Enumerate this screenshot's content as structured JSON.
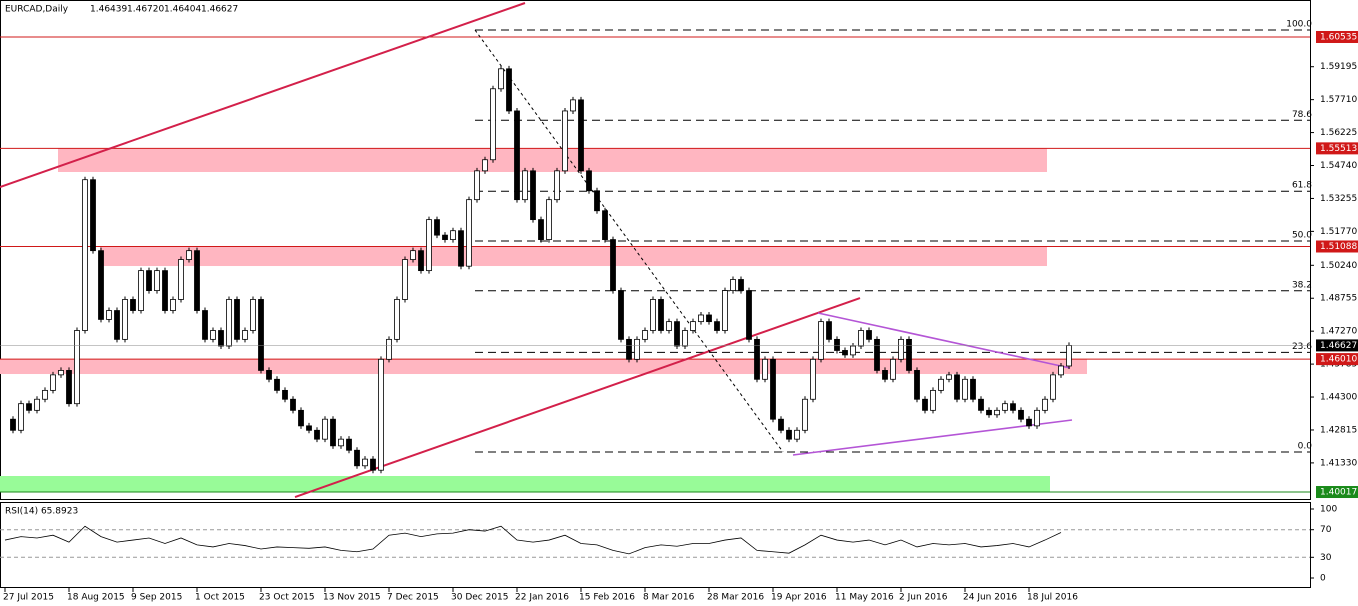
{
  "chart_data": {
    "type": "candlestick",
    "title": "EURCAD,Daily",
    "ohlc_text": [
      "1.46439",
      "1.46720",
      "1.46404",
      "1.46627"
    ],
    "close": [
      1.433,
      1.428,
      1.44,
      1.437,
      1.442,
      1.446,
      1.453,
      1.455,
      1.44,
      1.473,
      1.541,
      1.509,
      1.478,
      1.482,
      1.469,
      1.487,
      1.482,
      1.5,
      1.491,
      1.5,
      1.482,
      1.487,
      1.505,
      1.509,
      1.482,
      1.469,
      1.473,
      1.466,
      1.487,
      1.469,
      1.473,
      1.487,
      1.455,
      1.451,
      1.446,
      1.442,
      1.437,
      1.43,
      1.428,
      1.424,
      1.433,
      1.421,
      1.424,
      1.419,
      1.412,
      1.415,
      1.41,
      1.46,
      1.469,
      1.487,
      1.505,
      1.509,
      1.5,
      1.523,
      1.516,
      1.514,
      1.518,
      1.502,
      1.532,
      1.545,
      1.55,
      1.582,
      1.591,
      1.572,
      1.532,
      1.545,
      1.523,
      1.514,
      1.532,
      1.545,
      1.572,
      1.577,
      1.545,
      1.536,
      1.527,
      1.514,
      1.491,
      1.469,
      1.46,
      1.469,
      1.473,
      1.487,
      1.473,
      1.477,
      1.466,
      1.473,
      1.477,
      1.48,
      1.477,
      1.473,
      1.491,
      1.496,
      1.491,
      1.469,
      1.451,
      1.46,
      1.433,
      1.428,
      1.424,
      1.428,
      1.442,
      1.46,
      1.477,
      1.469,
      1.464,
      1.462,
      1.466,
      1.473,
      1.469,
      1.455,
      1.451,
      1.46,
      1.469,
      1.455,
      1.442,
      1.437,
      1.446,
      1.451,
      1.453,
      1.442,
      1.451,
      1.442,
      1.437,
      1.435,
      1.437,
      1.44,
      1.437,
      1.433,
      1.43,
      1.437,
      1.442,
      1.453,
      1.457,
      1.46627
    ],
    "ylim": [
      1.39657,
      1.62203
    ],
    "yticks": [
      1.59195,
      {
        "value": 1.5771,
        "label": "1.57710"
      },
      1.56225,
      {
        "value": 1.5474,
        "label": "1.54740"
      },
      1.53255,
      {
        "value": 1.5177,
        "label": "1.51770"
      },
      {
        "value": 1.5024,
        "label": "1.50240"
      },
      1.48755,
      {
        "value": 1.4727,
        "label": "1.47270"
      },
      1.45785,
      {
        "value": 1.443,
        "label": "1.44300"
      },
      1.42815,
      {
        "value": 1.4133,
        "label": "1.41330"
      }
    ],
    "levels": [
      {
        "value": 1.60535,
        "color": "#d01818"
      },
      {
        "value": 1.55513,
        "color": "#d01818"
      },
      {
        "value": 1.51088,
        "color": "#d01818"
      },
      {
        "value": {
          "value": 1.4601,
          "label": "1.46010"
        },
        "color": "#d01818"
      },
      {
        "value": 1.40017,
        "color": "#1a8a1a"
      }
    ],
    "current_price": 1.46627,
    "fib_levels": [
      {
        "value": 1.60851,
        "label": "100.0"
      },
      {
        "value": 1.56779,
        "label": "78.6"
      },
      {
        "value": 1.53581,
        "label": "61.8"
      },
      {
        "value": 1.51336,
        "label": "50.0"
      },
      {
        "value": 1.4909,
        "label": "38.2"
      },
      {
        "value": 1.46312,
        "label": "23.6"
      },
      {
        "value": 1.41821,
        "label": "0.0"
      }
    ],
    "zones": [
      {
        "from": 1.55513,
        "to": 1.54447,
        "color": "#ffb6c1"
      },
      {
        "from": 1.51088,
        "to": 1.50208,
        "color": "#ffb6c1"
      },
      {
        "from": 1.4601,
        "to": 1.45338,
        "color": "#ffb6c1"
      },
      {
        "from": 1.40739,
        "to": 1.40017,
        "color": "#98fb98"
      }
    ],
    "trendlines": [
      {
        "from": 1.5377,
        "to": 1.62068,
        "color": "#d3204a"
      },
      {
        "from": 1.39792,
        "to": 1.48765,
        "color": "#d3204a"
      },
      {
        "from": 1.48089,
        "to": 1.45609,
        "color": "#b455d6"
      },
      {
        "from": 1.41686,
        "to": 1.43264,
        "color": "#b455d6"
      },
      {
        "from": 1.60851,
        "to": 1.41821,
        "color": "#000000"
      }
    ],
    "categories": [
      "27 Jul 2015",
      "18 Aug 2015",
      "9 Sep 2015",
      "1 Oct 2015",
      "23 Oct 2015",
      "13 Nov 2015",
      "7 Dec 2015",
      "30 Dec 2015",
      "22 Jan 2016",
      "15 Feb 2016",
      "8 Mar 2016",
      "28 Mar 2016",
      "19 Apr 2016",
      "11 May 2016",
      "2 Jun 2016",
      "24 Jun 2016",
      "18 Jul 2016"
    ],
    "rsi": {
      "title": "RSI(14) 65.8923",
      "values": [
        55,
        60,
        58,
        62,
        52,
        75,
        60,
        52,
        55,
        58,
        50,
        58,
        48,
        45,
        50,
        47,
        42,
        45,
        44,
        43,
        45,
        40,
        38,
        42,
        62,
        65,
        60,
        64,
        65,
        70,
        68,
        75,
        55,
        52,
        55,
        62,
        50,
        48,
        40,
        35,
        44,
        48,
        46,
        50,
        50,
        55,
        58,
        40,
        38,
        36,
        48,
        62,
        55,
        52,
        55,
        48,
        55,
        45,
        50,
        48,
        50,
        45,
        47,
        50,
        45,
        55,
        65.8923
      ],
      "ylim": [
        0,
        100
      ],
      "yticks": [
        100,
        70,
        30,
        0
      ],
      "levels": [
        70,
        30
      ]
    }
  }
}
